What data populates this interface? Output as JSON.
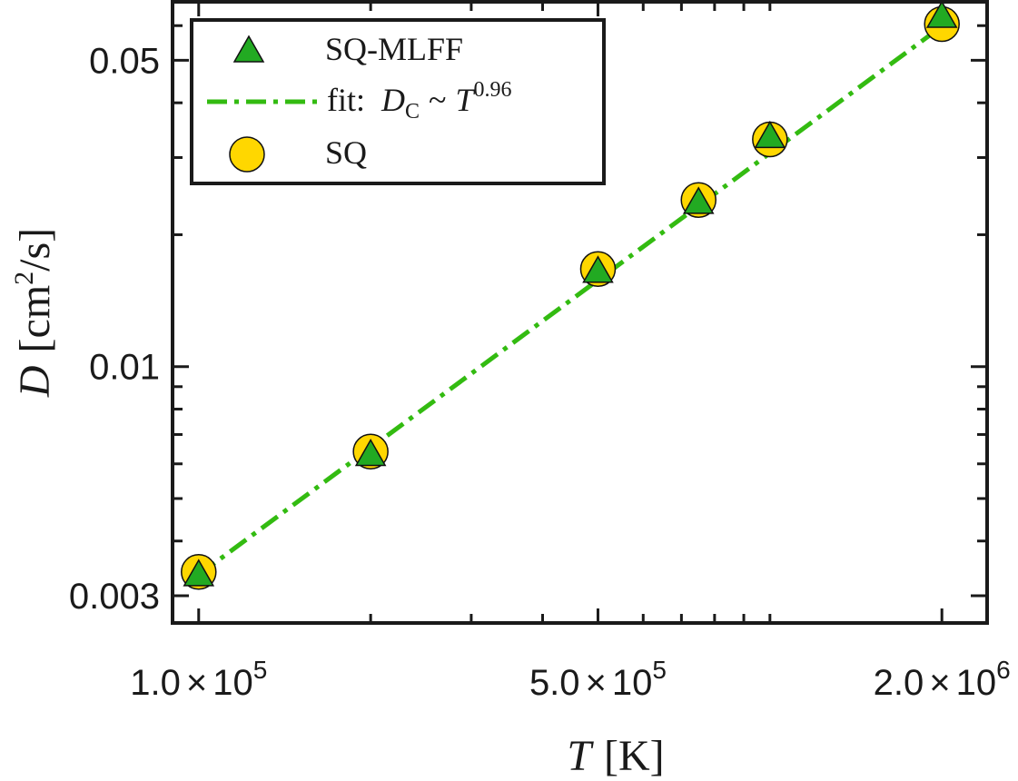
{
  "chart_data": {
    "type": "scatter",
    "x_scale": "log",
    "y_scale": "log",
    "xlim": [
      90000,
      2400000
    ],
    "ylim": [
      0.0026,
      0.068
    ],
    "xlabel": {
      "var": "T",
      "unit": "[K]"
    },
    "ylabel": {
      "var": "D",
      "unit_open": "[cm",
      "unit_sup": "2",
      "unit_close": "/s]"
    },
    "x_ticks": [
      {
        "value": 100000,
        "mantissa": "1.0",
        "exp": "5"
      },
      {
        "value": 500000,
        "mantissa": "5.0",
        "exp": "5"
      },
      {
        "value": 2000000,
        "mantissa": "2.0",
        "exp": "6"
      }
    ],
    "y_ticks": [
      {
        "value": 0.003,
        "label": "0.003"
      },
      {
        "value": 0.01,
        "label": "0.01"
      },
      {
        "value": 0.05,
        "label": "0.05"
      }
    ],
    "series": [
      {
        "name": "SQ-MLFF",
        "marker": "triangle",
        "color": "#22aa22",
        "x": [
          100000,
          200000,
          500000,
          750000,
          1000000,
          2000000
        ],
        "y": [
          0.00335,
          0.0063,
          0.0165,
          0.0237,
          0.0335,
          0.063
        ]
      },
      {
        "name": "SQ",
        "marker": "circle",
        "color": "#ffd700",
        "x": [
          100000,
          200000,
          500000,
          750000,
          1000000,
          2000000
        ],
        "y": [
          0.0034,
          0.0064,
          0.0167,
          0.024,
          0.033,
          0.0605
        ]
      }
    ],
    "fit": {
      "label_prefix": "fit:",
      "label_var": "D",
      "label_sub": "C",
      "label_sim": "~",
      "label_base": "T",
      "label_exp": "0.96",
      "exponent": 0.96,
      "color": "#33bb11",
      "x": [
        100000,
        2000000
      ],
      "y": [
        0.00335,
        0.0598
      ]
    },
    "legend_placement": "top-left",
    "grid": false
  }
}
